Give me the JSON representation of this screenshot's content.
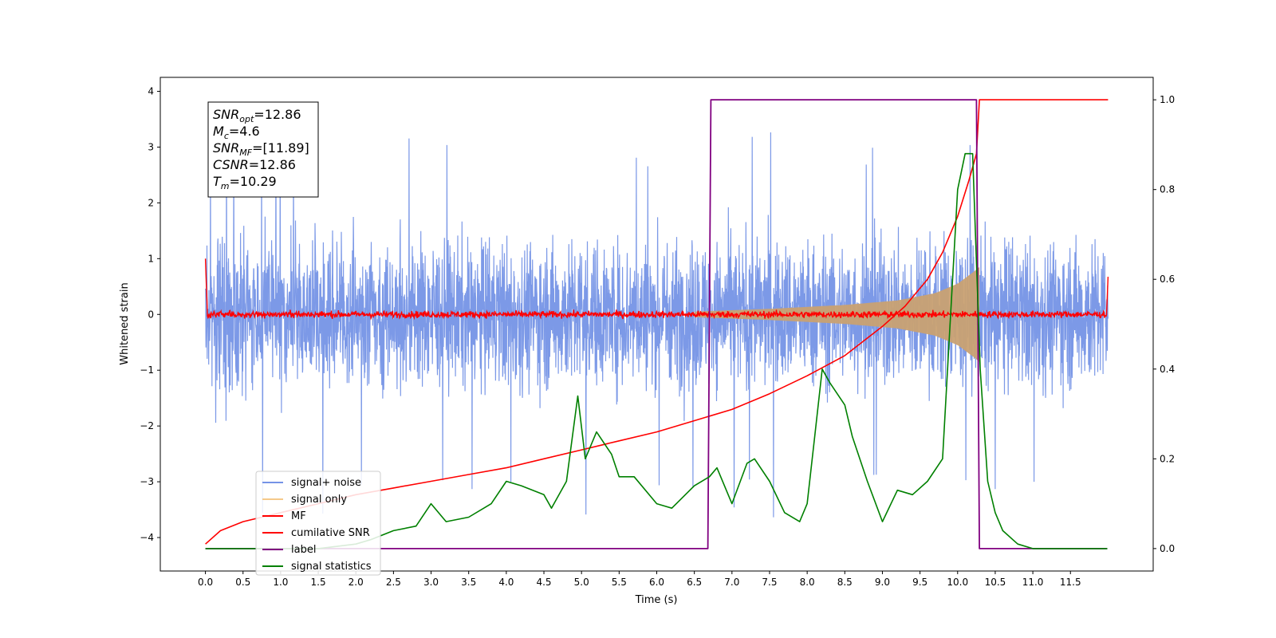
{
  "chart_data": {
    "type": "line",
    "xlabel": "Time (s)",
    "ylabel": "Whitened strain",
    "xlim": [
      -0.6,
      12.6
    ],
    "ylim_left": [
      -4.6,
      4.25
    ],
    "ylim_right": [
      -0.05,
      1.05
    ],
    "x_ticks": [
      "0.0",
      "0.5",
      "1.0",
      "1.5",
      "2.0",
      "2.5",
      "3.0",
      "3.5",
      "4.0",
      "4.5",
      "5.0",
      "5.5",
      "6.0",
      "6.5",
      "7.0",
      "7.5",
      "8.0",
      "8.5",
      "9.0",
      "9.5",
      "10.0",
      "10.5",
      "11.0",
      "11.5"
    ],
    "y_ticks_left": [
      "4",
      "3",
      "2",
      "1",
      "0",
      "−1",
      "−2",
      "−3",
      "−4"
    ],
    "y_ticks_right": [
      "1.0",
      "0.8",
      "0.6",
      "0.4",
      "0.2",
      "0.0"
    ],
    "annotation": {
      "lines": [
        {
          "base": "SNR",
          "sub": "opt",
          "rest": "=12.86"
        },
        {
          "base": "M",
          "sub": "c",
          "rest": "=4.6"
        },
        {
          "base": "SNR",
          "sub": "MF",
          "rest": "=[11.89]"
        },
        {
          "base": "CSNR",
          "sub": "",
          "rest": "=12.86"
        },
        {
          "base": "T",
          "sub": "m",
          "rest": "=10.29"
        }
      ]
    },
    "legend": {
      "placement": "lower-left",
      "entries": [
        {
          "label": "signal+ noise",
          "color": "#7593e6"
        },
        {
          "label": "signal only",
          "color": "#f5c98a"
        },
        {
          "label": "MF",
          "color": "#ff0000"
        },
        {
          "label": "cumilative SNR",
          "color": "#ff0000"
        },
        {
          "label": "label",
          "color": "#800080"
        },
        {
          "label": "signal statistics",
          "color": "#008000"
        }
      ]
    },
    "series": [
      {
        "name": "signal+ noise",
        "axis": "left",
        "style": "noise-band",
        "x_range": [
          0,
          12
        ],
        "typical_low": -2.0,
        "typical_high": 2.0,
        "peaks_high": 3.5,
        "peaks_low": -3.7
      },
      {
        "name": "signal only",
        "axis": "left",
        "style": "chirp-envelope",
        "x_range": [
          6.5,
          10.29
        ],
        "amplitude": [
          [
            6.5,
            0.05
          ],
          [
            7.5,
            0.1
          ],
          [
            8.5,
            0.17
          ],
          [
            9.2,
            0.25
          ],
          [
            9.7,
            0.38
          ],
          [
            10.0,
            0.55
          ],
          [
            10.2,
            0.75
          ],
          [
            10.29,
            0.85
          ]
        ]
      },
      {
        "name": "MF",
        "axis": "left",
        "style": "noise-band",
        "x_range": [
          0,
          12
        ],
        "typical_low": -0.1,
        "typical_high": 0.1,
        "edge_spikes": [
          [
            0.0,
            1.0
          ],
          [
            12.0,
            0.9
          ]
        ]
      },
      {
        "name": "cumilative SNR",
        "axis": "right",
        "x": [
          0.0,
          0.2,
          0.5,
          1.0,
          1.5,
          2.0,
          2.5,
          3.0,
          3.5,
          4.0,
          4.5,
          5.0,
          5.5,
          6.0,
          6.5,
          7.0,
          7.5,
          8.0,
          8.5,
          9.0,
          9.3,
          9.6,
          9.8,
          10.0,
          10.15,
          10.25,
          10.29,
          12.0
        ],
        "y": [
          0.01,
          0.04,
          0.06,
          0.08,
          0.1,
          0.12,
          0.135,
          0.15,
          0.165,
          0.18,
          0.2,
          0.22,
          0.24,
          0.26,
          0.285,
          0.31,
          0.345,
          0.385,
          0.43,
          0.495,
          0.54,
          0.6,
          0.66,
          0.74,
          0.82,
          0.88,
          1.0,
          1.0
        ]
      },
      {
        "name": "label",
        "axis": "right",
        "x": [
          0.0,
          6.68,
          6.72,
          10.25,
          10.29,
          11.99
        ],
        "y": [
          0.0,
          0.0,
          1.0,
          1.0,
          0.0,
          0.0
        ]
      },
      {
        "name": "signal statistics",
        "axis": "right",
        "x": [
          0.0,
          0.5,
          1.0,
          1.5,
          2.0,
          2.2,
          2.5,
          2.8,
          3.0,
          3.2,
          3.5,
          3.8,
          4.0,
          4.2,
          4.5,
          4.6,
          4.8,
          4.95,
          5.05,
          5.2,
          5.4,
          5.5,
          5.7,
          6.0,
          6.2,
          6.5,
          6.7,
          6.8,
          7.0,
          7.2,
          7.3,
          7.5,
          7.7,
          7.9,
          8.0,
          8.1,
          8.2,
          8.3,
          8.5,
          8.6,
          8.8,
          9.0,
          9.2,
          9.4,
          9.6,
          9.8,
          9.9,
          10.0,
          10.1,
          10.2,
          10.3,
          10.4,
          10.5,
          10.6,
          10.8,
          11.0,
          11.5,
          11.99
        ],
        "y": [
          0.0,
          0.0,
          0.0,
          0.0,
          0.01,
          0.02,
          0.04,
          0.05,
          0.1,
          0.06,
          0.07,
          0.1,
          0.15,
          0.14,
          0.12,
          0.09,
          0.15,
          0.34,
          0.2,
          0.26,
          0.21,
          0.16,
          0.16,
          0.1,
          0.09,
          0.14,
          0.16,
          0.18,
          0.1,
          0.19,
          0.2,
          0.15,
          0.08,
          0.06,
          0.1,
          0.25,
          0.4,
          0.37,
          0.32,
          0.25,
          0.15,
          0.06,
          0.13,
          0.12,
          0.15,
          0.2,
          0.5,
          0.8,
          0.88,
          0.88,
          0.4,
          0.15,
          0.08,
          0.04,
          0.01,
          0.0,
          0.0,
          0.0
        ]
      }
    ]
  }
}
